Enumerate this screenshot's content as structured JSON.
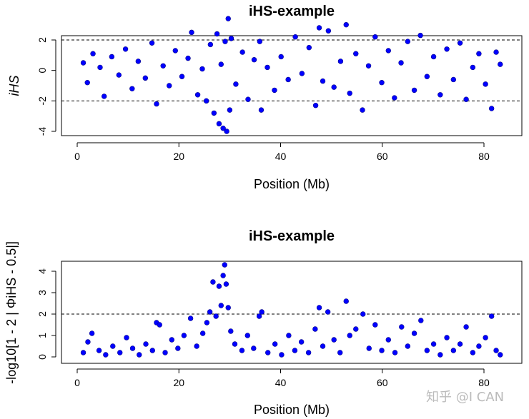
{
  "watermark": "知乎 @I CAN",
  "point_color": "#0000ff",
  "chart_data": [
    {
      "type": "scatter",
      "title": "iHS-example",
      "xlabel": "Position (Mb)",
      "ylabel": "iHS",
      "xlim": [
        0,
        84
      ],
      "ylim": [
        -4.1,
        3.5
      ],
      "xticks": [
        0,
        20,
        40,
        60,
        80
      ],
      "yticks": [
        -4,
        -2,
        0,
        2
      ],
      "thresholds": [
        2,
        -2
      ],
      "points": [
        [
          1.2,
          0.5
        ],
        [
          2.0,
          -0.8
        ],
        [
          3.1,
          1.1
        ],
        [
          4.5,
          0.2
        ],
        [
          5.3,
          -1.7
        ],
        [
          6.8,
          0.9
        ],
        [
          8.2,
          -0.3
        ],
        [
          9.5,
          1.4
        ],
        [
          10.8,
          -1.2
        ],
        [
          12.0,
          0.6
        ],
        [
          13.4,
          -0.5
        ],
        [
          14.7,
          1.8
        ],
        [
          15.6,
          -2.2
        ],
        [
          16.9,
          0.3
        ],
        [
          18.1,
          -1.0
        ],
        [
          19.3,
          1.3
        ],
        [
          20.6,
          -0.4
        ],
        [
          21.8,
          0.8
        ],
        [
          22.5,
          2.5
        ],
        [
          23.7,
          -1.6
        ],
        [
          24.6,
          0.1
        ],
        [
          25.4,
          -2.0
        ],
        [
          26.2,
          1.7
        ],
        [
          26.9,
          -2.8
        ],
        [
          27.5,
          2.4
        ],
        [
          27.9,
          -3.5
        ],
        [
          28.3,
          0.4
        ],
        [
          28.7,
          -3.8
        ],
        [
          29.1,
          1.9
        ],
        [
          29.4,
          -4.0
        ],
        [
          29.7,
          3.4
        ],
        [
          30.0,
          -2.6
        ],
        [
          30.3,
          2.1
        ],
        [
          31.2,
          -0.9
        ],
        [
          32.5,
          1.2
        ],
        [
          33.6,
          -1.9
        ],
        [
          34.8,
          0.7
        ],
        [
          35.9,
          1.9
        ],
        [
          36.2,
          -2.6
        ],
        [
          37.4,
          0.2
        ],
        [
          38.8,
          -1.3
        ],
        [
          40.1,
          0.9
        ],
        [
          41.5,
          -0.6
        ],
        [
          42.9,
          2.2
        ],
        [
          44.2,
          -0.2
        ],
        [
          45.6,
          1.5
        ],
        [
          46.9,
          -2.3
        ],
        [
          47.6,
          2.8
        ],
        [
          48.3,
          -0.7
        ],
        [
          49.4,
          2.6
        ],
        [
          50.5,
          -1.1
        ],
        [
          51.8,
          0.6
        ],
        [
          52.9,
          3.0
        ],
        [
          53.6,
          -1.5
        ],
        [
          54.8,
          1.1
        ],
        [
          56.1,
          -2.6
        ],
        [
          57.3,
          0.3
        ],
        [
          58.6,
          2.2
        ],
        [
          59.9,
          -0.8
        ],
        [
          61.2,
          1.3
        ],
        [
          62.4,
          -1.8
        ],
        [
          63.7,
          0.5
        ],
        [
          65.0,
          1.9
        ],
        [
          66.3,
          -1.3
        ],
        [
          67.5,
          2.3
        ],
        [
          68.8,
          -0.4
        ],
        [
          70.1,
          0.9
        ],
        [
          71.4,
          -1.6
        ],
        [
          72.7,
          1.4
        ],
        [
          74.0,
          -0.6
        ],
        [
          75.3,
          1.8
        ],
        [
          76.5,
          -1.9
        ],
        [
          77.8,
          0.2
        ],
        [
          79.0,
          1.1
        ],
        [
          80.3,
          -0.9
        ],
        [
          81.5,
          -2.5
        ],
        [
          82.4,
          1.2
        ],
        [
          83.2,
          0.4
        ]
      ]
    },
    {
      "type": "scatter",
      "title": "iHS-example",
      "xlabel": "Position (Mb)",
      "ylabel": "-log10[1 - 2 | ΦiHS - 0.5|]",
      "xlim": [
        0,
        84
      ],
      "ylim": [
        -0.15,
        4.4
      ],
      "xticks": [
        0,
        20,
        40,
        60,
        80
      ],
      "yticks": [
        0,
        1,
        2,
        3,
        4
      ],
      "thresholds": [
        2
      ],
      "points": [
        [
          1.2,
          0.2
        ],
        [
          2.1,
          0.7
        ],
        [
          2.9,
          1.1
        ],
        [
          4.3,
          0.3
        ],
        [
          5.6,
          0.1
        ],
        [
          7.0,
          0.5
        ],
        [
          8.4,
          0.2
        ],
        [
          9.7,
          0.9
        ],
        [
          10.9,
          0.4
        ],
        [
          12.2,
          0.1
        ],
        [
          13.5,
          0.6
        ],
        [
          14.8,
          0.3
        ],
        [
          15.6,
          1.6
        ],
        [
          16.2,
          1.5
        ],
        [
          17.3,
          0.2
        ],
        [
          18.6,
          0.8
        ],
        [
          19.8,
          0.4
        ],
        [
          21.0,
          1.0
        ],
        [
          22.3,
          1.8
        ],
        [
          23.5,
          0.5
        ],
        [
          24.7,
          1.1
        ],
        [
          25.5,
          1.6
        ],
        [
          26.1,
          2.1
        ],
        [
          26.7,
          3.5
        ],
        [
          27.3,
          1.9
        ],
        [
          27.9,
          3.3
        ],
        [
          28.3,
          2.4
        ],
        [
          28.7,
          3.8
        ],
        [
          29.0,
          4.3
        ],
        [
          29.3,
          3.4
        ],
        [
          29.7,
          2.3
        ],
        [
          30.2,
          1.2
        ],
        [
          31.0,
          0.6
        ],
        [
          32.4,
          0.3
        ],
        [
          33.5,
          1.0
        ],
        [
          34.7,
          0.4
        ],
        [
          35.8,
          1.9
        ],
        [
          36.3,
          2.1
        ],
        [
          37.5,
          0.2
        ],
        [
          38.9,
          0.6
        ],
        [
          40.2,
          0.1
        ],
        [
          41.6,
          1.0
        ],
        [
          42.8,
          0.3
        ],
        [
          44.1,
          0.7
        ],
        [
          45.5,
          0.2
        ],
        [
          46.8,
          1.3
        ],
        [
          47.6,
          2.3
        ],
        [
          48.3,
          0.5
        ],
        [
          49.3,
          2.1
        ],
        [
          50.5,
          0.8
        ],
        [
          51.7,
          0.2
        ],
        [
          52.9,
          2.6
        ],
        [
          53.6,
          1.0
        ],
        [
          54.8,
          1.3
        ],
        [
          56.2,
          2.0
        ],
        [
          57.4,
          0.4
        ],
        [
          58.6,
          1.5
        ],
        [
          59.9,
          0.3
        ],
        [
          61.2,
          0.8
        ],
        [
          62.5,
          0.2
        ],
        [
          63.8,
          1.4
        ],
        [
          65.0,
          0.5
        ],
        [
          66.3,
          1.1
        ],
        [
          67.6,
          1.7
        ],
        [
          68.8,
          0.3
        ],
        [
          70.1,
          0.6
        ],
        [
          71.4,
          0.1
        ],
        [
          72.7,
          0.9
        ],
        [
          74.0,
          0.3
        ],
        [
          75.3,
          0.6
        ],
        [
          76.5,
          1.4
        ],
        [
          77.8,
          0.2
        ],
        [
          79.0,
          0.5
        ],
        [
          80.3,
          0.9
        ],
        [
          81.5,
          1.9
        ],
        [
          82.4,
          0.3
        ],
        [
          83.2,
          0.1
        ]
      ]
    }
  ]
}
